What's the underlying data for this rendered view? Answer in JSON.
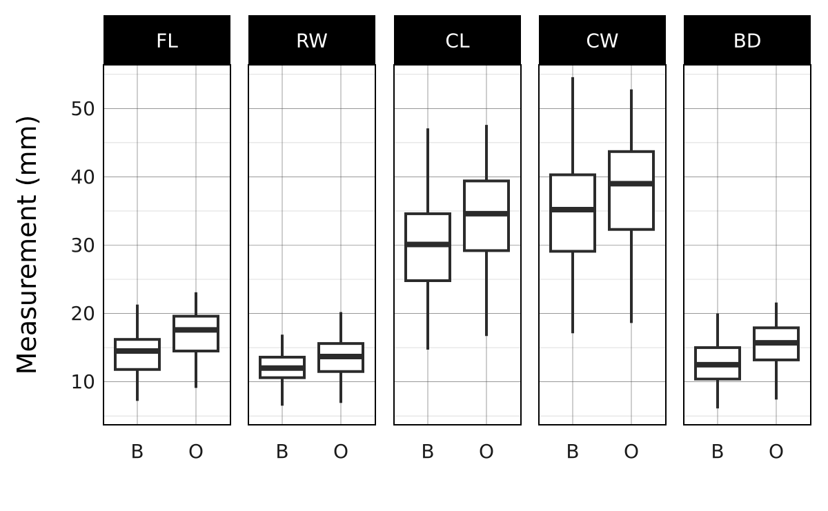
{
  "chart_data": {
    "type": "boxplot",
    "ylabel": "Measurement (mm)",
    "ylim": [
      3.7,
      56.4
    ],
    "yticks": [
      10,
      20,
      30,
      40,
      50
    ],
    "categories": [
      "B",
      "O"
    ],
    "grid": true,
    "facets": [
      {
        "label": "FL",
        "boxes": [
          {
            "category": "B",
            "min": 7.2,
            "q1": 11.8,
            "median": 14.5,
            "q3": 16.2,
            "max": 21.3
          },
          {
            "category": "O",
            "min": 9.1,
            "q1": 14.5,
            "median": 17.6,
            "q3": 19.6,
            "max": 23.1
          }
        ]
      },
      {
        "label": "RW",
        "boxes": [
          {
            "category": "B",
            "min": 6.5,
            "q1": 10.6,
            "median": 12.0,
            "q3": 13.6,
            "max": 16.9
          },
          {
            "category": "O",
            "min": 6.9,
            "q1": 11.5,
            "median": 13.7,
            "q3": 15.6,
            "max": 20.2
          }
        ]
      },
      {
        "label": "CL",
        "boxes": [
          {
            "category": "B",
            "min": 14.7,
            "q1": 24.8,
            "median": 30.1,
            "q3": 34.6,
            "max": 47.1
          },
          {
            "category": "O",
            "min": 16.7,
            "q1": 29.2,
            "median": 34.6,
            "q3": 39.4,
            "max": 47.6
          }
        ]
      },
      {
        "label": "CW",
        "boxes": [
          {
            "category": "B",
            "min": 17.1,
            "q1": 29.1,
            "median": 35.2,
            "q3": 40.3,
            "max": 54.6
          },
          {
            "category": "O",
            "min": 18.6,
            "q1": 32.3,
            "median": 39.0,
            "q3": 43.7,
            "max": 52.8
          }
        ]
      },
      {
        "label": "BD",
        "boxes": [
          {
            "category": "B",
            "min": 6.1,
            "q1": 10.4,
            "median": 12.5,
            "q3": 15.0,
            "max": 20.0
          },
          {
            "category": "O",
            "min": 7.4,
            "q1": 13.2,
            "median": 15.7,
            "q3": 17.9,
            "max": 21.6
          }
        ]
      }
    ]
  }
}
